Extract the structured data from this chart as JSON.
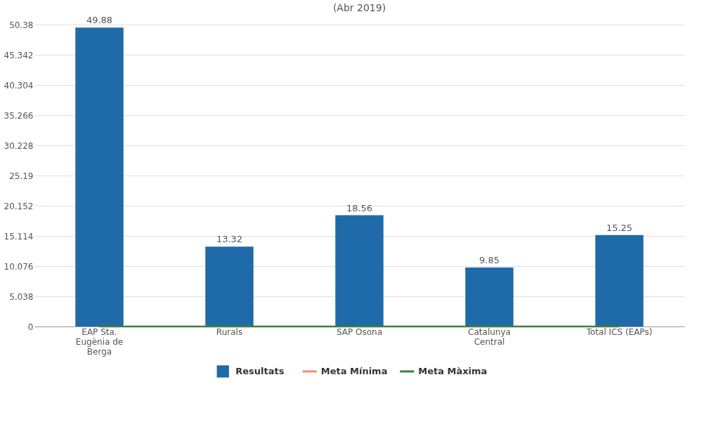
{
  "chart_data": {
    "type": "bar",
    "title": "(Abr 2019)",
    "categories": [
      "EAP Sta. Eugènia de Berga",
      "Rurals",
      "SAP Osona",
      "Catalunya Central",
      "Total ICS (EAPs)"
    ],
    "series": [
      {
        "name": "Resultats",
        "color": "#1f6aa8",
        "values": [
          49.88,
          13.32,
          18.56,
          9.85,
          15.25
        ],
        "value_labels": [
          "49.88",
          "13.32",
          "18.56",
          "9.85",
          "15.25"
        ]
      },
      {
        "name": "Meta Mínima",
        "type": "line",
        "color": "#f08a78",
        "values": [
          null,
          null,
          null,
          null,
          null
        ]
      },
      {
        "name": "Meta Màxima",
        "type": "line",
        "color": "#3d7f3a",
        "values": [
          0,
          0,
          0,
          0,
          0
        ]
      }
    ],
    "ylim": [
      0,
      50.38
    ],
    "yticks": [
      0,
      5.038,
      10.076,
      15.114,
      20.152,
      25.19,
      30.228,
      35.266,
      40.304,
      45.342,
      50.38
    ],
    "grid": "y",
    "legend": "bottom"
  }
}
